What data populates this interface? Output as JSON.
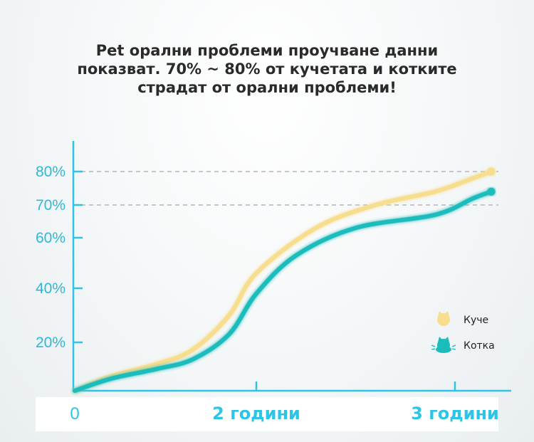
{
  "title_lines": [
    "Pet орални проблеми проучване данни",
    "показват. 70% ~ 80% от кучетата и котките",
    "страдат от орални проблеми!"
  ],
  "chart_data": {
    "type": "line",
    "x_tick_labels": [
      "0",
      "2 години",
      "3 години"
    ],
    "x_ticks": [
      0,
      2,
      3
    ],
    "y_tick_labels": [
      "20%",
      "40%",
      "60%",
      "70%",
      "80%"
    ],
    "y_ticks": [
      20,
      40,
      60,
      70,
      80
    ],
    "xlim": [
      0,
      3.2
    ],
    "ylim": [
      0,
      90
    ],
    "reference_lines": [
      80,
      70
    ],
    "series": [
      {
        "name": "Куче",
        "color": "#f7dd8e",
        "icon": "dog-icon",
        "x": [
          0,
          0.4,
          0.9,
          1.3,
          1.7,
          2.0,
          2.3,
          2.6,
          2.9,
          3.1,
          3.2
        ],
        "y": [
          0,
          6,
          11,
          17,
          30,
          46,
          63,
          70,
          74,
          78,
          80
        ]
      },
      {
        "name": "Котка",
        "color": "#1cbcbc",
        "icon": "cat-icon",
        "x": [
          0,
          0.4,
          0.9,
          1.3,
          1.7,
          2.0,
          2.2,
          2.5,
          2.9,
          3.1,
          3.2
        ],
        "y": [
          0,
          5,
          9,
          13,
          23,
          38,
          53,
          63,
          67,
          72,
          74
        ]
      }
    ],
    "grid": false,
    "legend": "right"
  }
}
